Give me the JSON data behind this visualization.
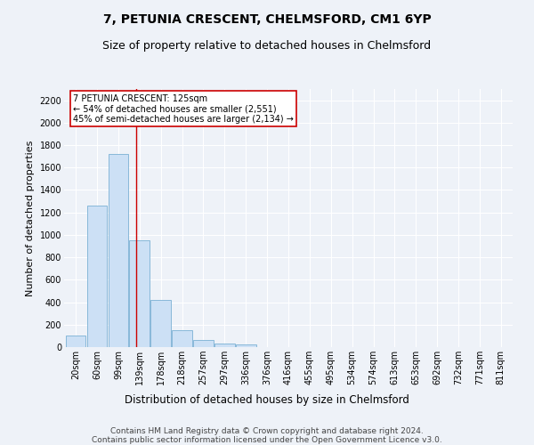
{
  "title_line1": "7, PETUNIA CRESCENT, CHELMSFORD, CM1 6YP",
  "title_line2": "Size of property relative to detached houses in Chelmsford",
  "xlabel": "Distribution of detached houses by size in Chelmsford",
  "ylabel": "Number of detached properties",
  "footnote": "Contains HM Land Registry data © Crown copyright and database right 2024.\nContains public sector information licensed under the Open Government Licence v3.0.",
  "bar_labels": [
    "20sqm",
    "60sqm",
    "99sqm",
    "139sqm",
    "178sqm",
    "218sqm",
    "257sqm",
    "297sqm",
    "336sqm",
    "376sqm",
    "416sqm",
    "455sqm",
    "495sqm",
    "534sqm",
    "574sqm",
    "613sqm",
    "653sqm",
    "692sqm",
    "732sqm",
    "771sqm",
    "811sqm"
  ],
  "bar_values": [
    100,
    1265,
    1725,
    950,
    420,
    150,
    65,
    35,
    20,
    0,
    0,
    0,
    0,
    0,
    0,
    0,
    0,
    0,
    0,
    0,
    0
  ],
  "bar_color": "#cce0f5",
  "bar_edge_color": "#7ab0d4",
  "property_line_index": 2.85,
  "property_label": "7 PETUNIA CRESCENT: 125sqm",
  "annotation_line1": "← 54% of detached houses are smaller (2,551)",
  "annotation_line2": "45% of semi-detached houses are larger (2,134) →",
  "annotation_box_color": "#ffffff",
  "annotation_box_edge_color": "#cc0000",
  "property_line_color": "#cc0000",
  "ylim": [
    0,
    2300
  ],
  "yticks": [
    0,
    200,
    400,
    600,
    800,
    1000,
    1200,
    1400,
    1600,
    1800,
    2000,
    2200
  ],
  "bg_color": "#eef2f8",
  "grid_color": "#ffffff",
  "title_fontsize": 10,
  "subtitle_fontsize": 9,
  "axis_label_fontsize": 8,
  "tick_fontsize": 7,
  "footnote_fontsize": 6.5
}
